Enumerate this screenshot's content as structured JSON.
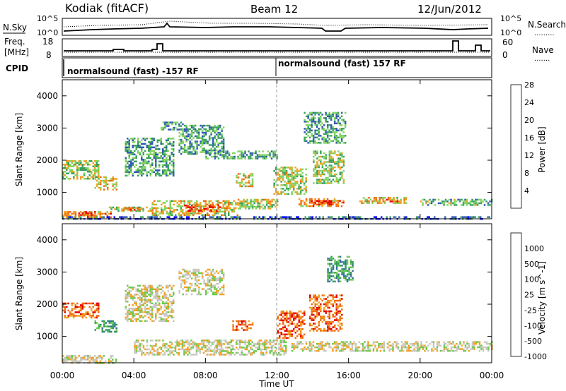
{
  "header": {
    "station": "Kodiak (fitACF)",
    "beam": "Beam 12",
    "date": "12/Jun/2012"
  },
  "small_panels": {
    "nsky_label": "N.Sky",
    "nsky_ticks": [
      "10^5",
      "10^0"
    ],
    "nsearch_label": "N.Search",
    "nsearch_ticks": [
      "10^5",
      "10^0"
    ],
    "freq_label_1": "Freq.",
    "freq_label_2": "[MHz]",
    "freq_ticks": [
      "18",
      "8"
    ],
    "nave_label": "Nave",
    "nave_ticks": [
      "60",
      "0"
    ],
    "cpid_label": "CPID",
    "cpid_segments": [
      "normalsound (fast) -157 RF",
      "normalsound (fast) 157 RF"
    ]
  },
  "time_axis": {
    "label": "Time UT",
    "ticks": [
      "00:00",
      "04:00",
      "08:00",
      "12:00",
      "16:00",
      "20:00",
      "00:00"
    ]
  },
  "chart_data": [
    {
      "type": "heatmap",
      "name": "power",
      "ylabel": "Slant Range [km]",
      "xlim": [
        0,
        24
      ],
      "ylim": [
        180,
        4500
      ],
      "y_ticks": [
        1000,
        2000,
        3000,
        4000
      ],
      "colorbar": {
        "label": "Power [dB]",
        "ticks": [
          "4",
          "8",
          "12",
          "16",
          "20",
          "24",
          "28"
        ],
        "colors": [
          "#0000ff",
          "#2e56b4",
          "#39a05a",
          "#7fd35e",
          "#f2a020",
          "#f06a10",
          "#e30000"
        ]
      },
      "echo_regions": [
        {
          "t": [
            0.0,
            2.7
          ],
          "r": [
            250,
            420
          ],
          "level": 0.75
        },
        {
          "t": [
            0.7,
            1.8
          ],
          "r": [
            300,
            380
          ],
          "level": 0.95
        },
        {
          "t": [
            2.6,
            5.0
          ],
          "r": [
            430,
            560
          ],
          "level": 0.55
        },
        {
          "t": [
            3.2,
            4.4
          ],
          "r": [
            480,
            540
          ],
          "level": 0.85
        },
        {
          "t": [
            5.0,
            9.8
          ],
          "r": [
            300,
            760
          ],
          "level": 0.6
        },
        {
          "t": [
            6.8,
            8.8
          ],
          "r": [
            420,
            620
          ],
          "level": 0.95
        },
        {
          "t": [
            9.8,
            12.0
          ],
          "r": [
            500,
            800
          ],
          "level": 0.55
        },
        {
          "t": [
            13.2,
            15.7
          ],
          "r": [
            600,
            820
          ],
          "level": 0.75
        },
        {
          "t": [
            13.8,
            15.0
          ],
          "r": [
            640,
            760
          ],
          "level": 0.95
        },
        {
          "t": [
            16.5,
            19.2
          ],
          "r": [
            680,
            860
          ],
          "level": 0.6
        },
        {
          "t": [
            17.5,
            18.8
          ],
          "r": [
            700,
            800
          ],
          "level": 0.85
        },
        {
          "t": [
            20.0,
            24.0
          ],
          "r": [
            620,
            800
          ],
          "level": 0.4
        },
        {
          "t": [
            0.0,
            2.0
          ],
          "r": [
            1450,
            2000
          ],
          "level": 0.5
        },
        {
          "t": [
            1.8,
            3.0
          ],
          "r": [
            1100,
            1500
          ],
          "level": 0.65
        },
        {
          "t": [
            3.5,
            6.2
          ],
          "r": [
            1500,
            2700
          ],
          "level": 0.35
        },
        {
          "t": [
            5.5,
            6.7
          ],
          "r": [
            2950,
            3200
          ],
          "level": 0.35
        },
        {
          "t": [
            6.5,
            9.0
          ],
          "r": [
            2200,
            3100
          ],
          "level": 0.35
        },
        {
          "t": [
            8.0,
            12.0
          ],
          "r": [
            2050,
            2300
          ],
          "level": 0.35
        },
        {
          "t": [
            9.7,
            10.6
          ],
          "r": [
            1200,
            1600
          ],
          "level": 0.6
        },
        {
          "t": [
            11.8,
            13.6
          ],
          "r": [
            950,
            1800
          ],
          "level": 0.55
        },
        {
          "t": [
            14.0,
            15.7
          ],
          "r": [
            1300,
            2300
          ],
          "level": 0.5
        },
        {
          "t": [
            13.5,
            15.8
          ],
          "r": [
            2550,
            3500
          ],
          "level": 0.35
        },
        {
          "t": [
            0.0,
            24.0
          ],
          "r": [
            180,
            260
          ],
          "level": 0.15
        }
      ]
    },
    {
      "type": "heatmap",
      "name": "velocity",
      "ylabel": "Slant Range [km]",
      "xlim": [
        0,
        24
      ],
      "ylim": [
        180,
        4500
      ],
      "y_ticks": [
        1000,
        2000,
        3000,
        4000
      ],
      "colorbar": {
        "label": "Velocity [m s^-1]",
        "ticks": [
          "1000",
          "500",
          "100",
          "25",
          "-25",
          "-100",
          "-500",
          "-1000"
        ],
        "colors": [
          "#2030c0",
          "#2e6fa0",
          "#2f9a55",
          "#6cc84a",
          "#c8c8c0",
          "#f2a020",
          "#f06a10",
          "#e30000"
        ]
      },
      "echo_regions": [
        {
          "t": [
            0.0,
            3.0
          ],
          "r": [
            180,
            420
          ],
          "level": 0.6
        },
        {
          "t": [
            4.0,
            9.0
          ],
          "r": [
            420,
            900
          ],
          "level": 0.5
        },
        {
          "t": [
            8.5,
            12.5
          ],
          "r": [
            450,
            900
          ],
          "level": 0.5
        },
        {
          "t": [
            12.8,
            24.0
          ],
          "r": [
            550,
            850
          ],
          "level": 0.5
        },
        {
          "t": [
            0.0,
            2.0
          ],
          "r": [
            1600,
            2050
          ],
          "level": 0.7
        },
        {
          "t": [
            1.8,
            3.0
          ],
          "r": [
            1150,
            1500
          ],
          "level": 0.3
        },
        {
          "t": [
            3.5,
            6.2
          ],
          "r": [
            1500,
            2600
          ],
          "level": 0.5
        },
        {
          "t": [
            6.5,
            9.0
          ],
          "r": [
            2300,
            3100
          ],
          "level": 0.5
        },
        {
          "t": [
            9.5,
            10.6
          ],
          "r": [
            1200,
            1500
          ],
          "level": 0.75
        },
        {
          "t": [
            12.0,
            13.5
          ],
          "r": [
            950,
            1800
          ],
          "level": 0.75
        },
        {
          "t": [
            13.8,
            15.6
          ],
          "r": [
            1200,
            2300
          ],
          "level": 0.75
        },
        {
          "t": [
            14.8,
            16.2
          ],
          "r": [
            2700,
            3500
          ],
          "level": 0.35
        }
      ]
    }
  ]
}
